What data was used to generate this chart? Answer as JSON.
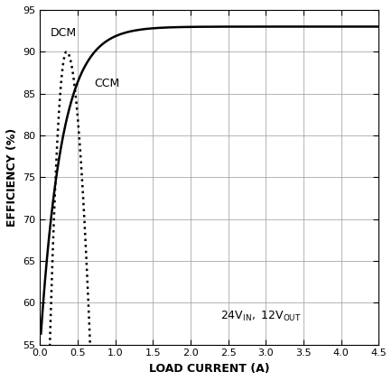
{
  "title": "",
  "xlabel": "LOAD CURRENT (A)",
  "ylabel": "EFFICIENCY (%)",
  "annotation": "24V",
  "annotation_in": "IN",
  "annotation_comma": ", 12V",
  "annotation_out": "OUT",
  "xlim": [
    0,
    4.5
  ],
  "ylim": [
    55,
    95
  ],
  "xticks": [
    0.0,
    0.5,
    1.0,
    1.5,
    2.0,
    2.5,
    3.0,
    3.5,
    4.0,
    4.5
  ],
  "yticks": [
    55,
    60,
    65,
    70,
    75,
    80,
    85,
    90,
    95
  ],
  "dcm_label": "DCM",
  "ccm_label": "CCM",
  "line_color": "#000000",
  "background_color": "#ffffff",
  "grid_color": "#999999"
}
